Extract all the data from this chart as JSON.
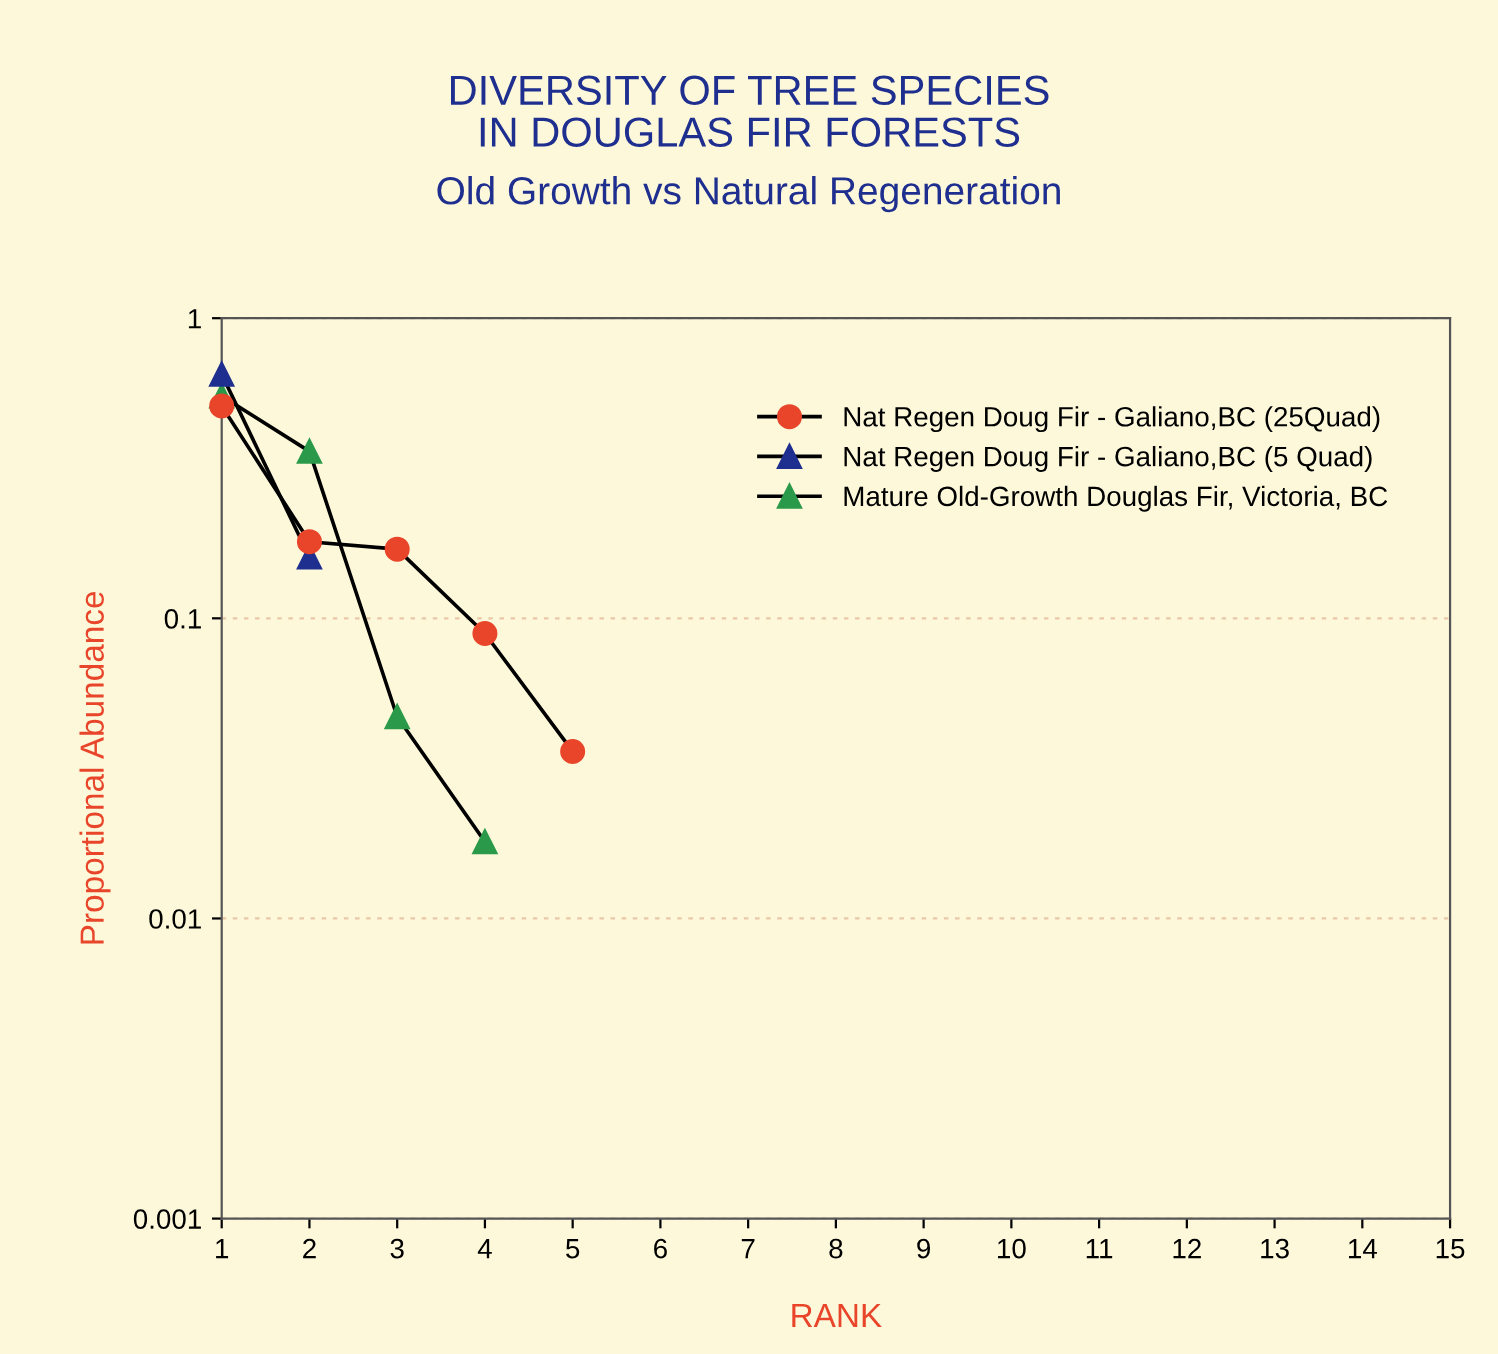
{
  "chart_data": {
    "type": "line",
    "title": "DIVERSITY OF TREE SPECIES\nIN DOUGLAS FIR FORESTS",
    "subtitle": "Old Growth vs Natural Regeneration",
    "xlabel": "RANK",
    "ylabel": "Proportional Abundance",
    "log": true,
    "xlim": [
      1,
      15
    ],
    "xticks": [
      1,
      2,
      3,
      4,
      5,
      6,
      7,
      8,
      9,
      10,
      11,
      12,
      13,
      14,
      15
    ],
    "ylim": [
      0.001,
      1
    ],
    "yticks": [
      0.001,
      0.01,
      0.1,
      1
    ],
    "grid": "y",
    "legend": "top right",
    "series": [
      {
        "name": "Nat Regen Doug Fir - Galiano,BC (25Quad)",
        "color": "#e8452a",
        "marker": "circle",
        "x": [
          1,
          2,
          3,
          4,
          5
        ],
        "values": [
          0.51,
          0.18,
          0.17,
          0.089,
          0.036
        ]
      },
      {
        "name": "Nat Regen Doug Fir - Galiano,BC (5 Quad)",
        "color": "#1f2f8f",
        "marker": "triangle",
        "x": [
          1,
          2
        ],
        "values": [
          0.65,
          0.16
        ]
      },
      {
        "name": "Mature Old-Growth Douglas Fir, Victoria, BC",
        "color": "#2a9a4a",
        "marker": "triangle",
        "x": [
          1,
          2,
          3,
          4
        ],
        "values": [
          0.55,
          0.36,
          0.047,
          0.018
        ]
      }
    ]
  }
}
